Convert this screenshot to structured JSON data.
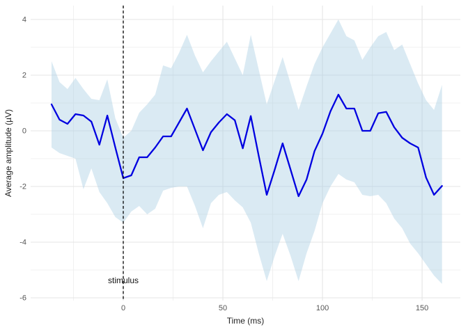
{
  "figure": {
    "xlabel": "Time (ms)",
    "ylabel": "Average amplitude (µV)"
  },
  "chart_data": {
    "type": "line",
    "title": "",
    "xlabel": "Time (ms)",
    "ylabel": "Average amplitude (µV)",
    "x": [
      -36,
      -32,
      -28,
      -24,
      -20,
      -16,
      -12,
      -8,
      -4,
      0,
      4,
      8,
      12,
      16,
      20,
      24,
      28,
      32,
      36,
      40,
      44,
      48,
      52,
      56,
      60,
      64,
      68,
      72,
      76,
      80,
      84,
      88,
      92,
      96,
      100,
      104,
      108,
      112,
      116,
      120,
      124,
      128,
      132,
      136,
      140,
      144,
      148,
      152,
      156,
      160
    ],
    "series": [
      {
        "name": "average-amplitude",
        "color": "#0000E0",
        "values": [
          0.95,
          0.4,
          0.25,
          0.6,
          0.55,
          0.33,
          -0.5,
          0.55,
          -0.6,
          -1.7,
          -1.6,
          -0.95,
          -0.95,
          -0.6,
          -0.2,
          -0.2,
          0.3,
          0.8,
          0.05,
          -0.7,
          -0.05,
          0.3,
          0.6,
          0.38,
          -0.63,
          0.53,
          -0.9,
          -2.3,
          -1.4,
          -0.45,
          -1.4,
          -2.35,
          -1.75,
          -0.73,
          -0.1,
          0.7,
          1.3,
          0.8,
          0.8,
          0.0,
          0.0,
          0.63,
          0.68,
          0.13,
          -0.25,
          -0.45,
          -0.6,
          -1.68,
          -2.3,
          -1.98
        ]
      }
    ],
    "ribbon": {
      "name": "confidence-band",
      "fill": "#A6CEE3",
      "opacity": 0.42,
      "upper": [
        2.5,
        1.75,
        1.5,
        1.9,
        1.5,
        1.15,
        1.1,
        1.85,
        0.45,
        -0.25,
        0.0,
        0.65,
        0.95,
        1.3,
        2.35,
        2.25,
        2.8,
        3.45,
        2.7,
        2.1,
        2.5,
        2.85,
        3.2,
        2.6,
        2.0,
        3.45,
        2.2,
        0.95,
        1.8,
        2.65,
        1.7,
        0.75,
        1.6,
        2.4,
        3.0,
        3.5,
        4.0,
        3.4,
        3.25,
        2.55,
        3.0,
        3.4,
        3.55,
        2.9,
        3.1,
        2.4,
        1.7,
        1.1,
        0.75,
        1.65
      ],
      "lower": [
        -0.6,
        -0.8,
        -0.9,
        -1.0,
        -2.1,
        -1.35,
        -2.2,
        -2.6,
        -3.1,
        -3.3,
        -2.9,
        -2.7,
        -3.0,
        -2.8,
        -2.15,
        -2.05,
        -2.0,
        -2.0,
        -2.7,
        -3.5,
        -2.6,
        -2.3,
        -2.2,
        -2.5,
        -2.75,
        -3.3,
        -4.4,
        -5.4,
        -4.5,
        -3.7,
        -4.5,
        -5.4,
        -4.4,
        -3.6,
        -2.6,
        -2.0,
        -1.55,
        -1.75,
        -1.85,
        -2.3,
        -2.35,
        -2.3,
        -2.6,
        -3.15,
        -3.5,
        -4.05,
        -4.4,
        -4.8,
        -5.2,
        -5.5
      ]
    },
    "vline": {
      "x": 0,
      "style": "dashed",
      "color": "#000000"
    },
    "annotation": {
      "text": "stimulus",
      "x": 0,
      "y": -5.38,
      "color": "#111111"
    },
    "x_ticks": [
      0,
      50,
      100,
      150
    ],
    "x_minor_ticks": [
      -25,
      25,
      75,
      125
    ],
    "y_ticks": [
      4,
      2,
      0,
      -2,
      -4,
      -6
    ],
    "y_minor_ticks": [
      3,
      1,
      -1,
      -3,
      -5
    ],
    "xlim": [
      -46.5,
      169.2
    ],
    "ylim": [
      -6.1,
      4.5
    ],
    "grid": true,
    "legend": "none",
    "colors": {
      "background": "#FFFFFF",
      "grid_major": "#E5E5E5",
      "grid_minor": "#F0F0F0",
      "tick_text": "#555555",
      "axis_title_text": "#1F1F1F",
      "line": "#0000E0",
      "ribbon": "#A6CEE3",
      "vline": "#000000"
    }
  }
}
